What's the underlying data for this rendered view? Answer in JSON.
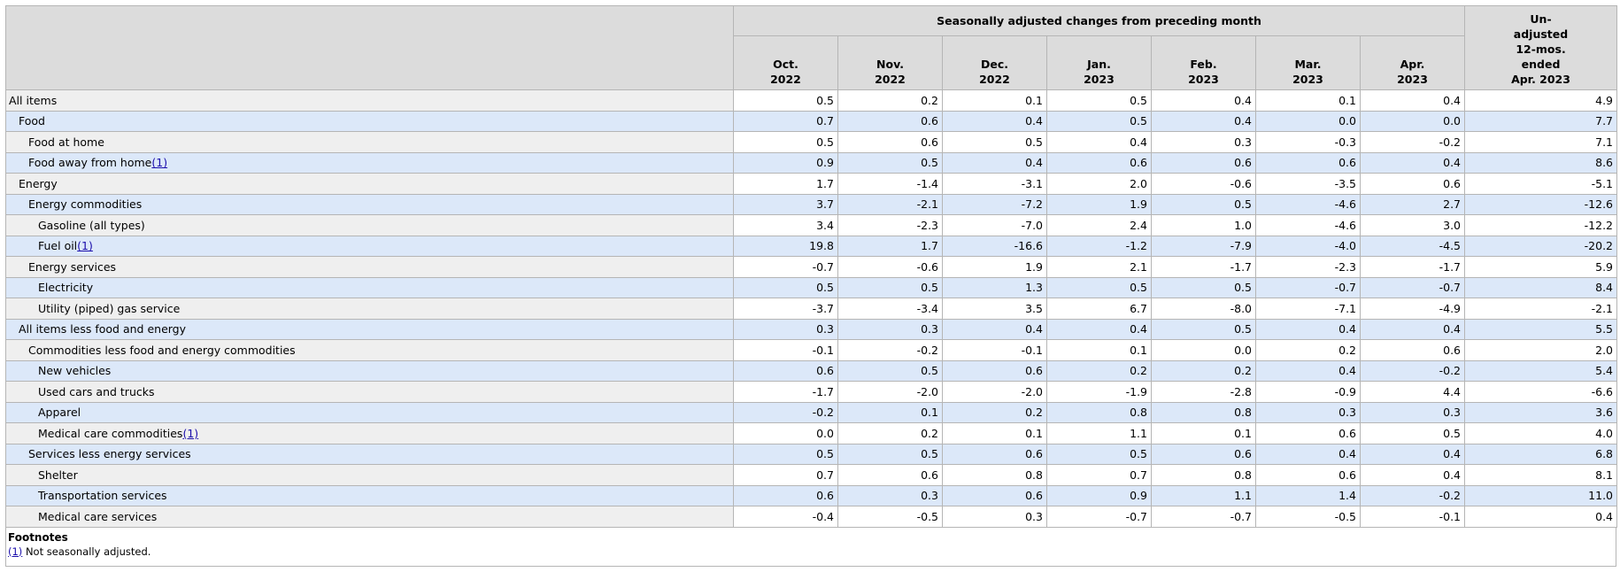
{
  "table": {
    "group_header": "Seasonally adjusted changes from preceding month",
    "columns": [
      {
        "month": "Oct.",
        "year": "2022"
      },
      {
        "month": "Nov.",
        "year": "2022"
      },
      {
        "month": "Dec.",
        "year": "2022"
      },
      {
        "month": "Jan.",
        "year": "2023"
      },
      {
        "month": "Feb.",
        "year": "2023"
      },
      {
        "month": "Mar.",
        "year": "2023"
      },
      {
        "month": "Apr.",
        "year": "2023"
      }
    ],
    "last_column": [
      "Un-",
      "adjusted",
      "12-mos.",
      "ended",
      "Apr. 2023"
    ],
    "rows": [
      {
        "label": "All items",
        "values": [
          "0.5",
          "0.2",
          "0.1",
          "0.5",
          "0.4",
          "0.1",
          "0.4",
          "4.9"
        ]
      },
      {
        "label": "Food",
        "values": [
          "0.7",
          "0.6",
          "0.4",
          "0.5",
          "0.4",
          "0.0",
          "0.0",
          "7.7"
        ]
      },
      {
        "label": "Food at home",
        "values": [
          "0.5",
          "0.6",
          "0.5",
          "0.4",
          "0.3",
          "-0.3",
          "-0.2",
          "7.1"
        ]
      },
      {
        "label": "Food away from home",
        "footnote": "(1)",
        "values": [
          "0.9",
          "0.5",
          "0.4",
          "0.6",
          "0.6",
          "0.6",
          "0.4",
          "8.6"
        ]
      },
      {
        "label": "Energy",
        "values": [
          "1.7",
          "-1.4",
          "-3.1",
          "2.0",
          "-0.6",
          "-3.5",
          "0.6",
          "-5.1"
        ]
      },
      {
        "label": "Energy commodities",
        "values": [
          "3.7",
          "-2.1",
          "-7.2",
          "1.9",
          "0.5",
          "-4.6",
          "2.7",
          "-12.6"
        ]
      },
      {
        "label": "Gasoline (all types)",
        "values": [
          "3.4",
          "-2.3",
          "-7.0",
          "2.4",
          "1.0",
          "-4.6",
          "3.0",
          "-12.2"
        ]
      },
      {
        "label": "Fuel oil",
        "footnote": "(1)",
        "values": [
          "19.8",
          "1.7",
          "-16.6",
          "-1.2",
          "-7.9",
          "-4.0",
          "-4.5",
          "-20.2"
        ]
      },
      {
        "label": "Energy services",
        "values": [
          "-0.7",
          "-0.6",
          "1.9",
          "2.1",
          "-1.7",
          "-2.3",
          "-1.7",
          "5.9"
        ]
      },
      {
        "label": "Electricity",
        "values": [
          "0.5",
          "0.5",
          "1.3",
          "0.5",
          "0.5",
          "-0.7",
          "-0.7",
          "8.4"
        ]
      },
      {
        "label": "Utility (piped) gas service",
        "values": [
          "-3.7",
          "-3.4",
          "3.5",
          "6.7",
          "-8.0",
          "-7.1",
          "-4.9",
          "-2.1"
        ]
      },
      {
        "label": "All items less food and energy",
        "values": [
          "0.3",
          "0.3",
          "0.4",
          "0.4",
          "0.5",
          "0.4",
          "0.4",
          "5.5"
        ]
      },
      {
        "label": "Commodities less food and energy commodities",
        "values": [
          "-0.1",
          "-0.2",
          "-0.1",
          "0.1",
          "0.0",
          "0.2",
          "0.6",
          "2.0"
        ]
      },
      {
        "label": "New vehicles",
        "values": [
          "0.6",
          "0.5",
          "0.6",
          "0.2",
          "0.2",
          "0.4",
          "-0.2",
          "5.4"
        ]
      },
      {
        "label": "Used cars and trucks",
        "values": [
          "-1.7",
          "-2.0",
          "-2.0",
          "-1.9",
          "-2.8",
          "-0.9",
          "4.4",
          "-6.6"
        ]
      },
      {
        "label": "Apparel",
        "values": [
          "-0.2",
          "0.1",
          "0.2",
          "0.8",
          "0.8",
          "0.3",
          "0.3",
          "3.6"
        ]
      },
      {
        "label": "Medical care commodities",
        "footnote": "(1)",
        "values": [
          "0.0",
          "0.2",
          "0.1",
          "1.1",
          "0.1",
          "0.6",
          "0.5",
          "4.0"
        ]
      },
      {
        "label": "Services less energy services",
        "values": [
          "0.5",
          "0.5",
          "0.6",
          "0.5",
          "0.6",
          "0.4",
          "0.4",
          "6.8"
        ]
      },
      {
        "label": "Shelter",
        "values": [
          "0.7",
          "0.6",
          "0.8",
          "0.7",
          "0.8",
          "0.6",
          "0.4",
          "8.1"
        ]
      },
      {
        "label": "Transportation services",
        "values": [
          "0.6",
          "0.3",
          "0.6",
          "0.9",
          "1.1",
          "1.4",
          "-0.2",
          "11.0"
        ]
      },
      {
        "label": "Medical care services",
        "values": [
          "-0.4",
          "-0.5",
          "0.3",
          "-0.7",
          "-0.7",
          "-0.5",
          "-0.1",
          "0.4"
        ]
      }
    ]
  },
  "footnotes": {
    "title": "Footnotes",
    "items": [
      {
        "ref": "(1)",
        "text": "Not seasonally adjusted."
      }
    ]
  }
}
